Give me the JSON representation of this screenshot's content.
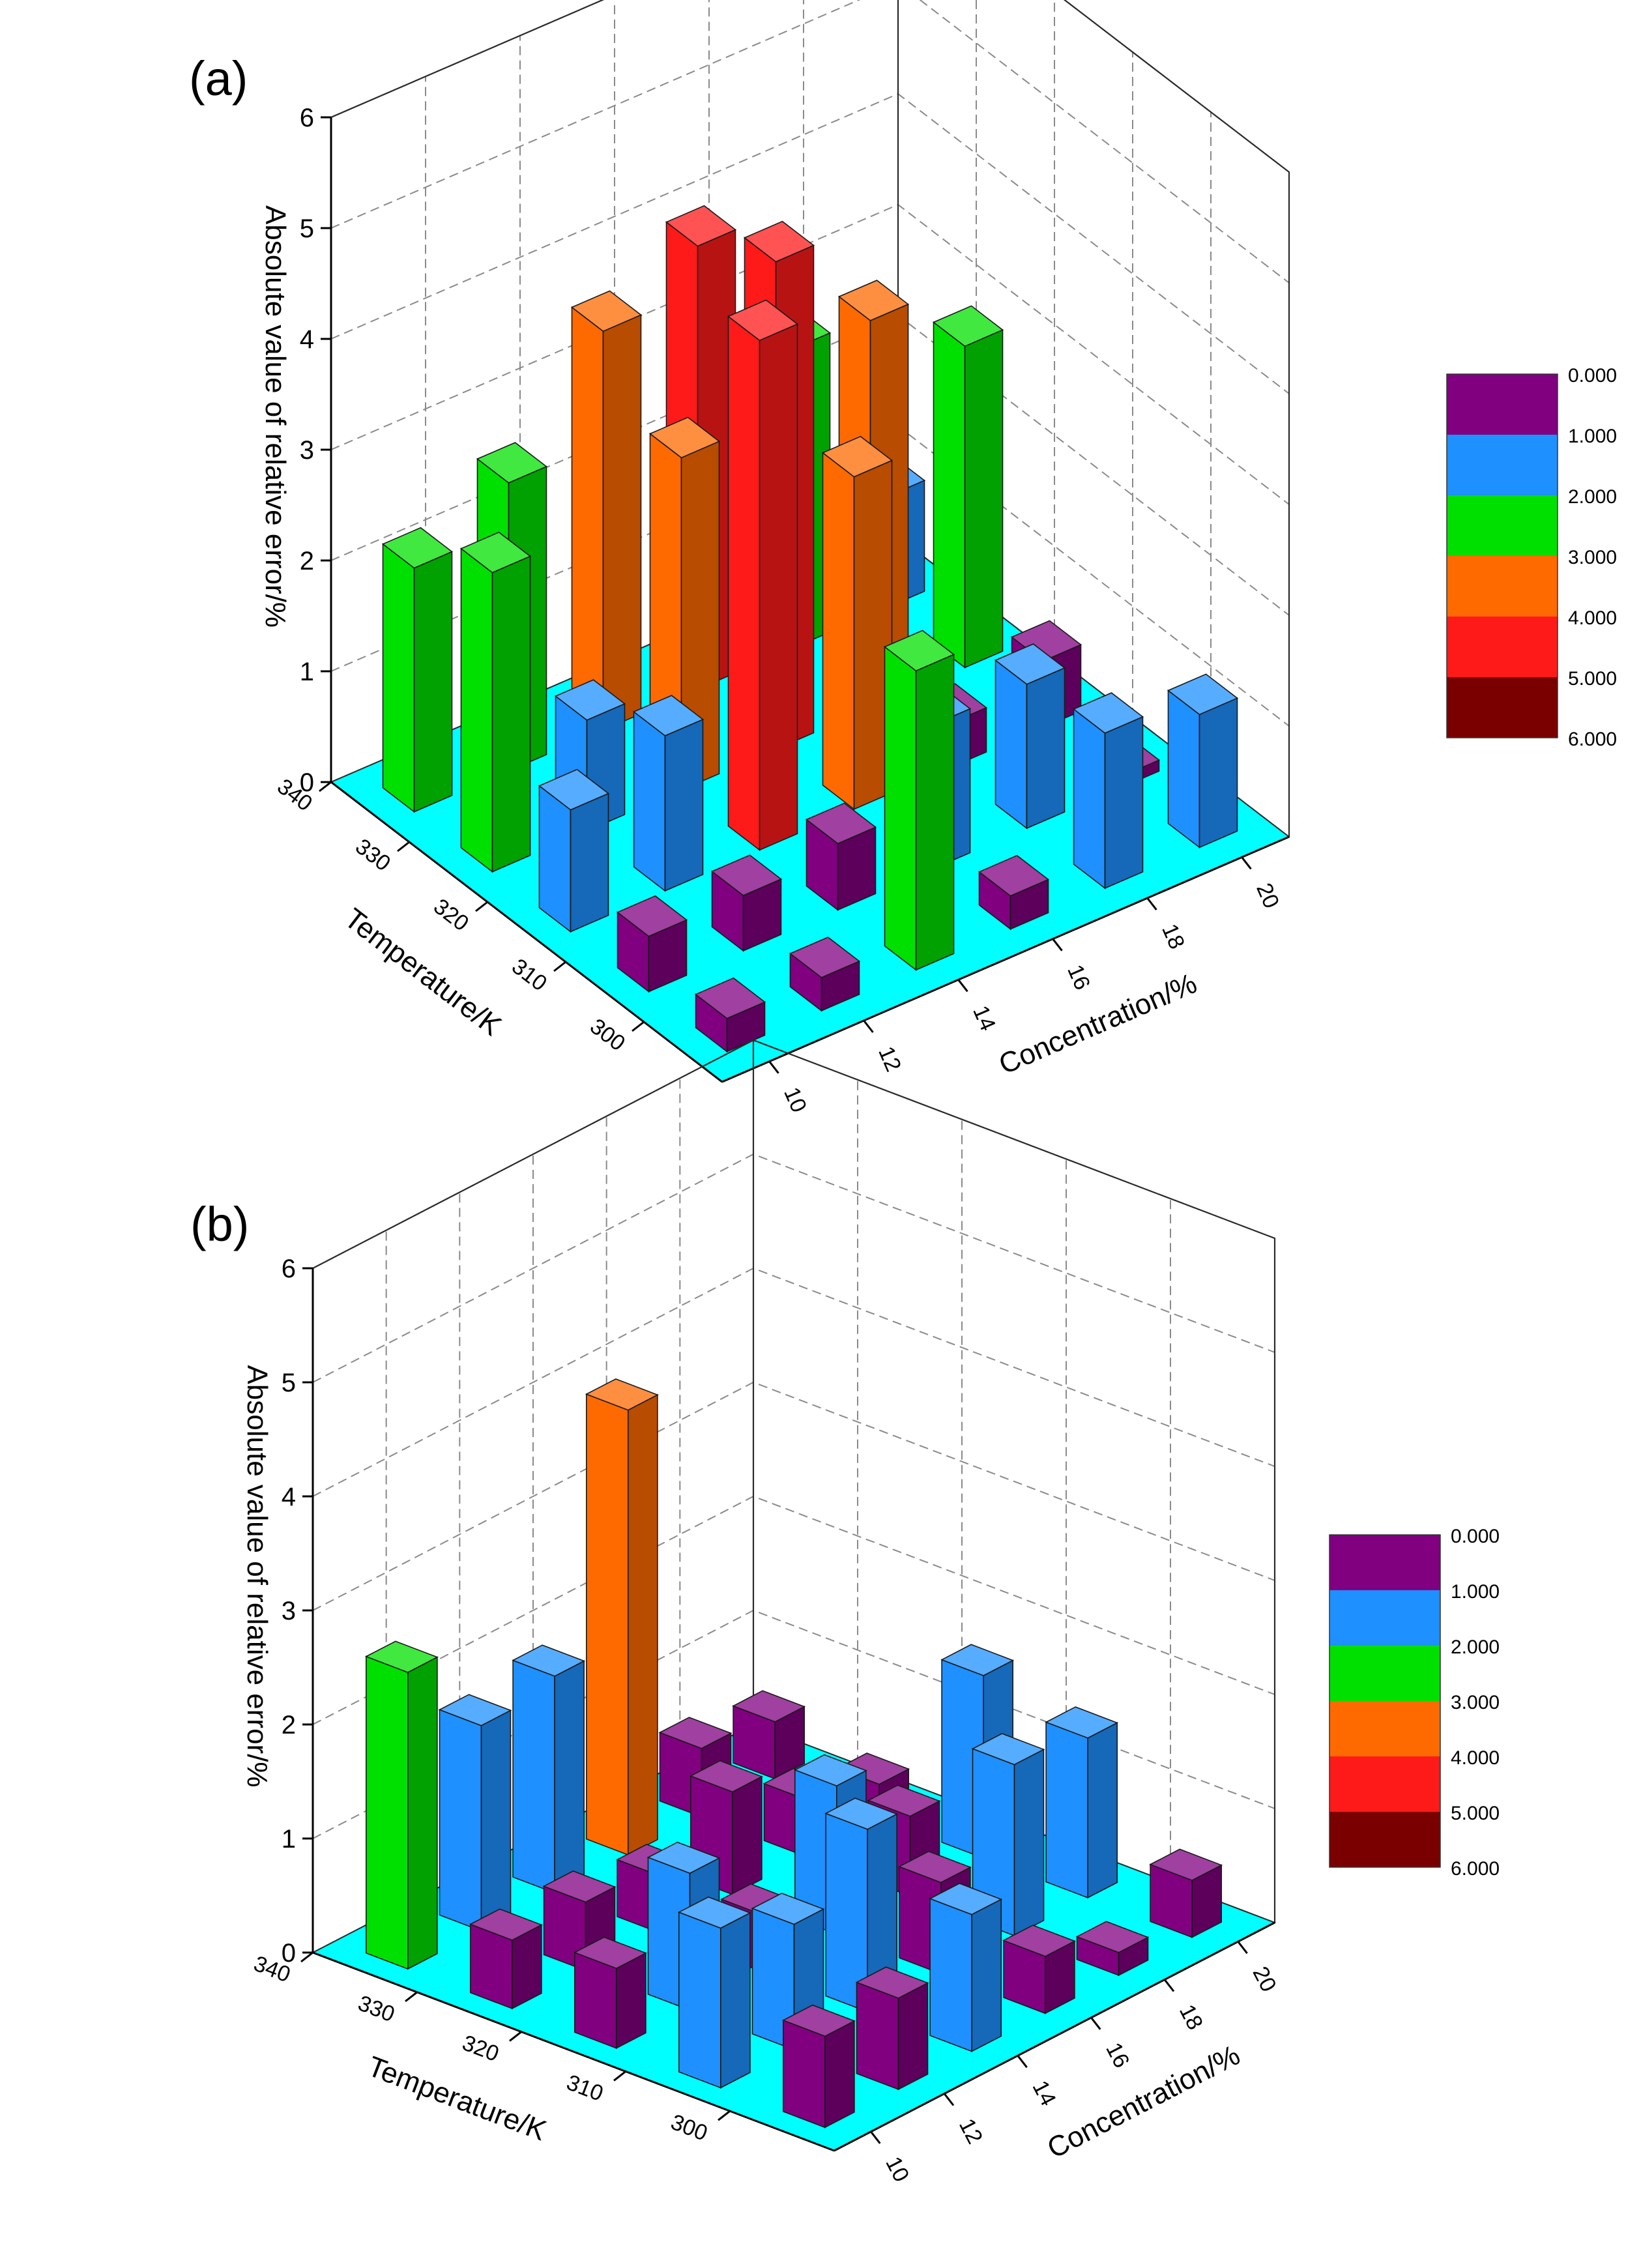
{
  "figure": {
    "panel_a_label": "(a)",
    "panel_b_label": "(b)"
  },
  "colors": {
    "floor": "#00ffff",
    "scale": [
      "#800080",
      "#1e90ff",
      "#00e000",
      "#ff6a00",
      "#ff1a1a",
      "#7a0000"
    ]
  },
  "chart_data": [
    {
      "type": "bar3d",
      "panel": "(a)",
      "zlabel": "Absolute value of relative error/%",
      "xlabel": "Concentration/%",
      "ylabel": "Temperature/K",
      "x": [
        "10",
        "12",
        "14",
        "16",
        "18",
        "20"
      ],
      "y": [
        "340",
        "330",
        "320",
        "310",
        "300"
      ],
      "zlim": [
        0,
        6
      ],
      "zticks": [
        "0",
        "1",
        "2",
        "3",
        "4",
        "5",
        "6"
      ],
      "legend": [
        "0.000",
        "1.000",
        "2.000",
        "3.000",
        "4.000",
        "5.000",
        "6.000"
      ],
      "values": [
        [
          2.2,
          2.6,
          3.6,
          4.0,
          2.7,
          1.0
        ],
        [
          2.7,
          1.0,
          3.0,
          4.4,
          3.5,
          2.9
        ],
        [
          1.1,
          1.4,
          4.6,
          3.0,
          0.4,
          0.6
        ],
        [
          0.5,
          0.5,
          0.6,
          1.3,
          1.3,
          0.1
        ],
        [
          0.3,
          0.3,
          2.7,
          0.3,
          1.4,
          1.2
        ]
      ]
    },
    {
      "type": "bar3d",
      "panel": "(b)",
      "zlabel": "Absolute value of relative error/%",
      "xlabel": "Concentration/%",
      "ylabel": "Temperature/K",
      "x": [
        "10",
        "12",
        "14",
        "16",
        "18",
        "20"
      ],
      "y": [
        "340",
        "330",
        "320",
        "310",
        "300"
      ],
      "zlim": [
        0,
        6
      ],
      "zticks": [
        "0",
        "1",
        "2",
        "3",
        "4",
        "5",
        "6"
      ],
      "legend": [
        "0.000",
        "1.000",
        "2.000",
        "3.000",
        "4.000",
        "5.000",
        "6.000"
      ],
      "values": [
        [
          2.6,
          1.8,
          1.9,
          3.9,
          0.6,
          0.5
        ],
        [
          0.6,
          0.6,
          0.5,
          0.9,
          0.5,
          0.3
        ],
        [
          0.7,
          1.2,
          0.5,
          1.3,
          0.7,
          1.6
        ],
        [
          1.4,
          1.1,
          1.6,
          0.8,
          1.5,
          1.4
        ],
        [
          0.8,
          0.8,
          1.2,
          0.5,
          0.2,
          0.5
        ]
      ]
    }
  ]
}
